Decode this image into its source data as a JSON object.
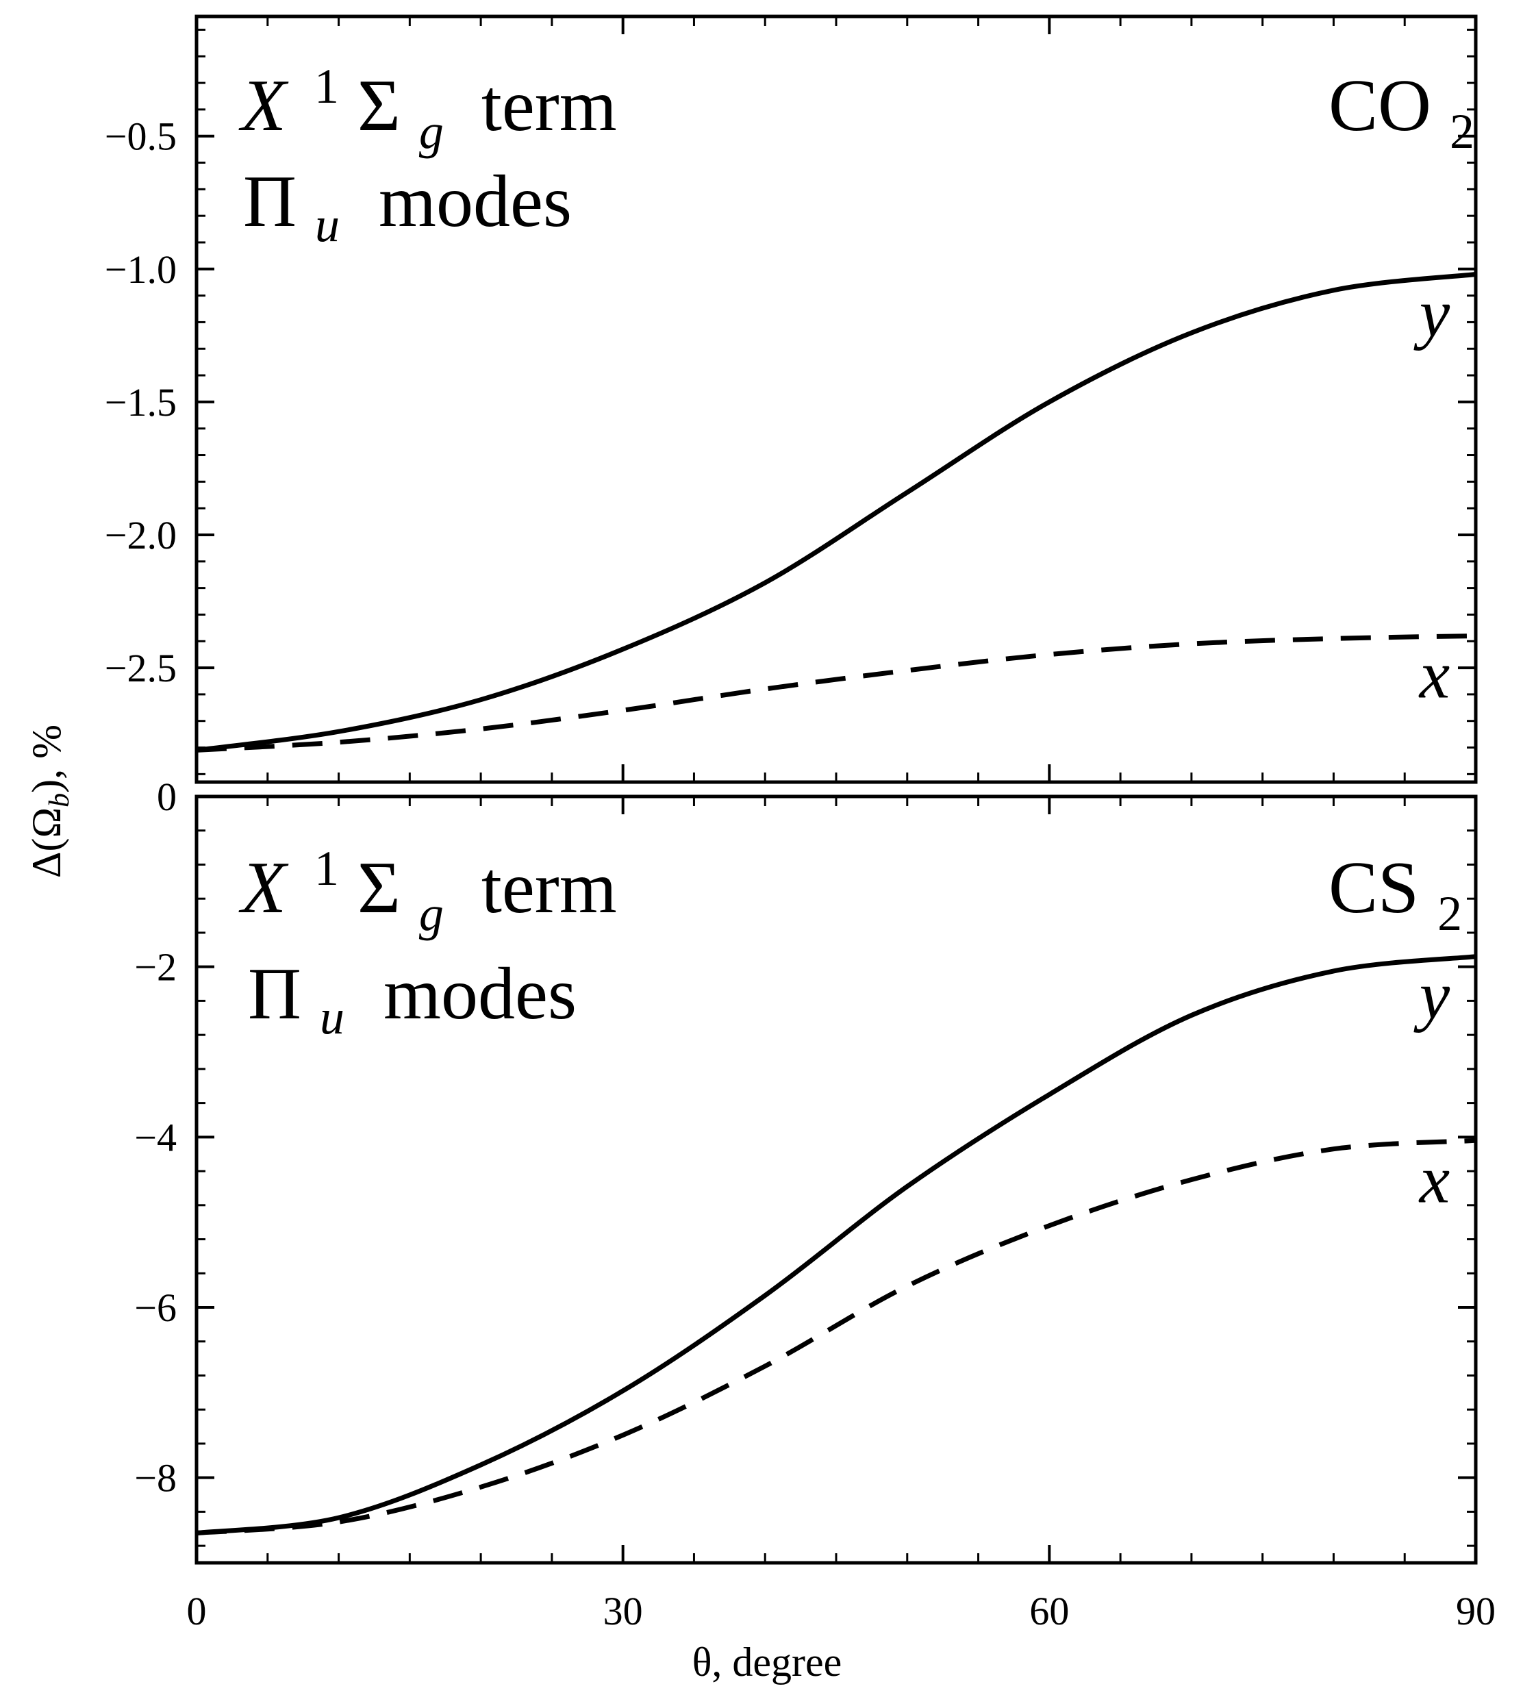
{
  "chart_data": [
    {
      "type": "line",
      "panel": "top",
      "molecule": {
        "base": "CO",
        "sub": "2"
      },
      "annotation": {
        "line1": {
          "X": "X",
          "sup": "1",
          "sigma": "Σ",
          "sub": "g",
          "word": "term"
        },
        "line2": {
          "pi": "Π",
          "sub": "u",
          "word": "modes"
        }
      },
      "xlim": [
        0,
        90
      ],
      "ylim": [
        -2.93,
        -0.05
      ],
      "yticks": [
        -0.5,
        -1.0,
        -1.5,
        -2.0,
        -2.5
      ],
      "ytick_labels": [
        "−0.5",
        "−1.0",
        "−1.5",
        "−2.0",
        "−2.5"
      ],
      "series": [
        {
          "name": "y",
          "style": "solid",
          "x": [
            0,
            10,
            20,
            30,
            40,
            50,
            60,
            70,
            80,
            90
          ],
          "y": [
            -2.81,
            -2.74,
            -2.62,
            -2.43,
            -2.18,
            -1.84,
            -1.5,
            -1.24,
            -1.08,
            -1.02
          ]
        },
        {
          "name": "x",
          "style": "dashed",
          "x": [
            0,
            10,
            20,
            30,
            40,
            50,
            60,
            70,
            80,
            90
          ],
          "y": [
            -2.81,
            -2.78,
            -2.73,
            -2.66,
            -2.58,
            -2.51,
            -2.45,
            -2.41,
            -2.39,
            -2.38
          ]
        }
      ]
    },
    {
      "type": "line",
      "panel": "bottom",
      "molecule": {
        "base": "CS",
        "sub": "2"
      },
      "annotation": {
        "line1": {
          "X": "X",
          "sup": "1",
          "sigma": "Σ",
          "sub": "g",
          "word": "term"
        },
        "line2": {
          "pi": "Π",
          "sub": "u",
          "word": "modes"
        }
      },
      "xlim": [
        0,
        90
      ],
      "ylim": [
        -9.0,
        0.0
      ],
      "yticks": [
        0,
        -2,
        -4,
        -6,
        -8
      ],
      "ytick_labels": [
        "0",
        "−2",
        "−4",
        "−6",
        "−8"
      ],
      "xticks": [
        0,
        30,
        60,
        90
      ],
      "xtick_labels": [
        "0",
        "30",
        "60",
        "90"
      ],
      "series": [
        {
          "name": "y",
          "style": "solid",
          "x": [
            0,
            10,
            20,
            30,
            40,
            50,
            60,
            70,
            80,
            90
          ],
          "y": [
            -8.65,
            -8.47,
            -7.85,
            -6.98,
            -5.86,
            -4.58,
            -3.5,
            -2.57,
            -2.05,
            -1.88
          ]
        },
        {
          "name": "x",
          "style": "dashed",
          "x": [
            0,
            10,
            20,
            30,
            40,
            50,
            60,
            70,
            80,
            90
          ],
          "y": [
            -8.65,
            -8.52,
            -8.11,
            -7.5,
            -6.69,
            -5.75,
            -5.04,
            -4.5,
            -4.14,
            -4.04
          ]
        }
      ]
    }
  ],
  "axes": {
    "ylabel": {
      "delta": "Δ(Ω",
      "sub": "b",
      "rest": "), %"
    },
    "xlabel": "θ, degree"
  }
}
